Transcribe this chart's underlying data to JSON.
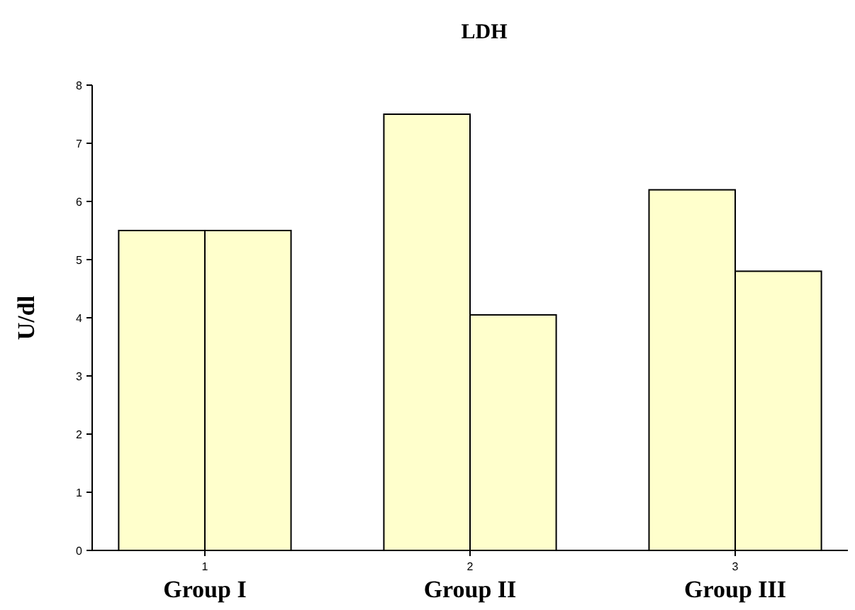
{
  "chart_data": {
    "type": "bar",
    "title": "LDH",
    "ylabel": "U/dl",
    "categories": [
      "1",
      "2",
      "3"
    ],
    "series": [
      {
        "color": "#ffffcc",
        "values": [
          5.5,
          7.5,
          6.2
        ]
      },
      {
        "color": "#ffffcc",
        "values": [
          5.5,
          4.05,
          4.8
        ]
      }
    ],
    "ylim": [
      0,
      8
    ],
    "yticks": [
      0,
      1,
      2,
      3,
      4,
      5,
      6,
      7,
      8
    ],
    "grid": false,
    "annotations": [
      "Group I",
      "Group II",
      "Group III"
    ]
  }
}
